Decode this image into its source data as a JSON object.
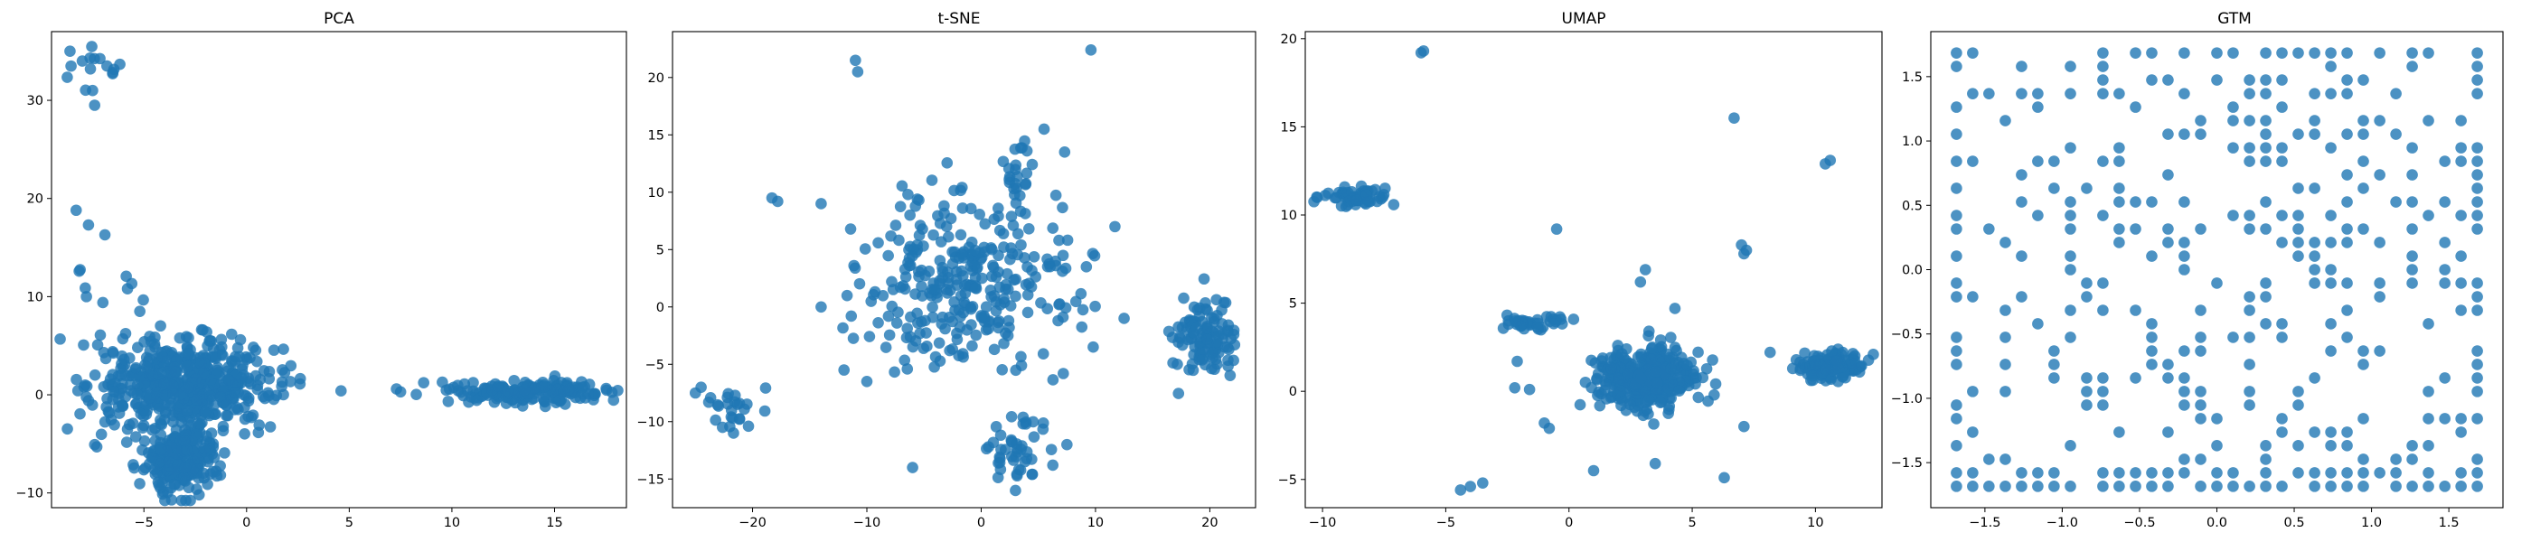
{
  "figure": {
    "marker_color": "#1f77b4",
    "marker_alpha": 0.8
  },
  "chart_data": [
    {
      "type": "scatter",
      "title": "PCA",
      "xlabel": "",
      "ylabel": "",
      "xlim": [
        -9.5,
        18.5
      ],
      "ylim": [
        -11.5,
        37
      ],
      "xticks": [
        -5,
        0,
        5,
        10,
        15
      ],
      "yticks": [
        -10,
        0,
        10,
        20,
        30
      ],
      "grid": false,
      "clusters": [
        {
          "cx": -3,
          "cy": 1,
          "sx": 2.2,
          "sy": 2.2,
          "n": 520
        },
        {
          "cx": -3.2,
          "cy": -6.5,
          "sx": 0.9,
          "sy": 1.8,
          "n": 240
        },
        {
          "cx": 14,
          "cy": 0.3,
          "sx": 1.8,
          "sy": 0.6,
          "n": 180
        },
        {
          "cx": -7.5,
          "cy": 33,
          "sx": 0.7,
          "sy": 1.0,
          "n": 12
        },
        {
          "cx": -6.5,
          "cy": 8,
          "sx": 1.2,
          "sy": 2.5,
          "n": 14
        }
      ],
      "points": [
        [
          -8.6,
          35
        ],
        [
          -8,
          34
        ],
        [
          -6.8,
          33.5
        ],
        [
          -7.4,
          29.5
        ],
        [
          -7.5,
          31
        ],
        [
          -8.3,
          18.8
        ],
        [
          -7.7,
          17.3
        ],
        [
          -6.9,
          16.3
        ],
        [
          -7.8,
          10
        ],
        [
          -7,
          9.4
        ],
        [
          -5.8,
          10.8
        ],
        [
          -5.2,
          8.5
        ],
        [
          2.6,
          1.1
        ],
        [
          4.6,
          0.4
        ],
        [
          7.5,
          0.3
        ],
        [
          7.3,
          0.6
        ]
      ]
    },
    {
      "type": "scatter",
      "title": "t-SNE",
      "xlabel": "",
      "ylabel": "",
      "xlim": [
        -27,
        24
      ],
      "ylim": [
        -17.5,
        24
      ],
      "xticks": [
        -20,
        -10,
        0,
        10,
        20
      ],
      "yticks": [
        -15,
        -10,
        -5,
        0,
        5,
        10,
        15,
        20
      ],
      "grid": false,
      "clusters": [
        {
          "cx": -1,
          "cy": 2,
          "sx": 4.5,
          "sy": 4,
          "n": 300
        },
        {
          "cx": 19.5,
          "cy": -3,
          "sx": 1.4,
          "sy": 1.7,
          "n": 110
        },
        {
          "cx": 3,
          "cy": -12.5,
          "sx": 1.6,
          "sy": 1.6,
          "n": 45
        },
        {
          "cx": -22,
          "cy": -9,
          "sx": 1.3,
          "sy": 1.0,
          "n": 25
        },
        {
          "cx": 3.5,
          "cy": 11.5,
          "sx": 0.7,
          "sy": 1.8,
          "n": 25
        }
      ],
      "points": [
        [
          -11,
          21.5
        ],
        [
          -10.8,
          20.5
        ],
        [
          9.6,
          22.4
        ],
        [
          -25,
          -7.5
        ],
        [
          -24.5,
          -7
        ],
        [
          -17.8,
          9.2
        ],
        [
          -18.3,
          9.5
        ],
        [
          -14,
          9
        ],
        [
          5.5,
          15.5
        ],
        [
          7.3,
          13.5
        ],
        [
          9.2,
          3.5
        ],
        [
          11.7,
          7
        ],
        [
          9.8,
          -3.5
        ],
        [
          12.5,
          -1
        ],
        [
          -14,
          0
        ],
        [
          -12,
          -5.5
        ],
        [
          -10,
          -6.5
        ],
        [
          -6,
          -14
        ],
        [
          3,
          -16
        ],
        [
          7.5,
          -12
        ]
      ]
    },
    {
      "type": "scatter",
      "title": "UMAP",
      "xlabel": "",
      "ylabel": "",
      "xlim": [
        -10.7,
        12.7
      ],
      "ylim": [
        -6.6,
        20.4
      ],
      "xticks": [
        -10,
        -5,
        0,
        5,
        10
      ],
      "yticks": [
        -5,
        0,
        5,
        10,
        15,
        20
      ],
      "grid": false,
      "clusters": [
        {
          "cx": 3,
          "cy": 0.7,
          "sx": 1.0,
          "sy": 0.9,
          "n": 380
        },
        {
          "cx": 10.6,
          "cy": 1.5,
          "sx": 0.75,
          "sy": 0.4,
          "n": 120
        },
        {
          "cx": -8.6,
          "cy": 11.1,
          "sx": 0.75,
          "sy": 0.25,
          "n": 60
        },
        {
          "cx": -1.6,
          "cy": 3.9,
          "sx": 0.9,
          "sy": 0.2,
          "n": 40
        }
      ],
      "points": [
        [
          -6,
          19.2
        ],
        [
          -5.9,
          19.3
        ],
        [
          6.7,
          15.5
        ],
        [
          10.4,
          12.9
        ],
        [
          10.6,
          13.1
        ],
        [
          7,
          8.3
        ],
        [
          7.2,
          8
        ],
        [
          7.1,
          7.8
        ],
        [
          -0.5,
          9.2
        ],
        [
          3.1,
          6.9
        ],
        [
          2.9,
          6.2
        ],
        [
          4.3,
          4.7
        ],
        [
          -4.4,
          -5.6
        ],
        [
          -4,
          -5.4
        ],
        [
          -3.5,
          -5.2
        ],
        [
          6.3,
          -4.9
        ],
        [
          7.1,
          -2
        ],
        [
          3.5,
          -4.1
        ],
        [
          1,
          -4.5
        ],
        [
          -1,
          -1.8
        ],
        [
          -0.8,
          -2.1
        ],
        [
          -2.1,
          1.7
        ],
        [
          -2.2,
          0.2
        ],
        [
          -1.6,
          0.1
        ]
      ]
    },
    {
      "type": "scatter",
      "title": "GTM",
      "xlabel": "",
      "ylabel": "",
      "xlim": [
        -1.85,
        1.85
      ],
      "ylim": [
        -1.85,
        1.85
      ],
      "xticks": [
        -1.5,
        -1.0,
        -0.5,
        0.0,
        0.5,
        1.0,
        1.5
      ],
      "yticks": [
        -1.5,
        -1.0,
        -0.5,
        0.0,
        0.5,
        1.0,
        1.5
      ],
      "grid": false,
      "grid_values": [
        -1.684,
        -1.579,
        -1.474,
        -1.368,
        -1.263,
        -1.158,
        -1.053,
        -0.947,
        -0.842,
        -0.737,
        -0.632,
        -0.526,
        -0.421,
        -0.316,
        -0.211,
        -0.105,
        0.0,
        0.105,
        0.211,
        0.316,
        0.421,
        0.526,
        0.632,
        0.737,
        0.842,
        0.947,
        1.053,
        1.158,
        1.263,
        1.368,
        1.474,
        1.579,
        1.684
      ]
    }
  ]
}
